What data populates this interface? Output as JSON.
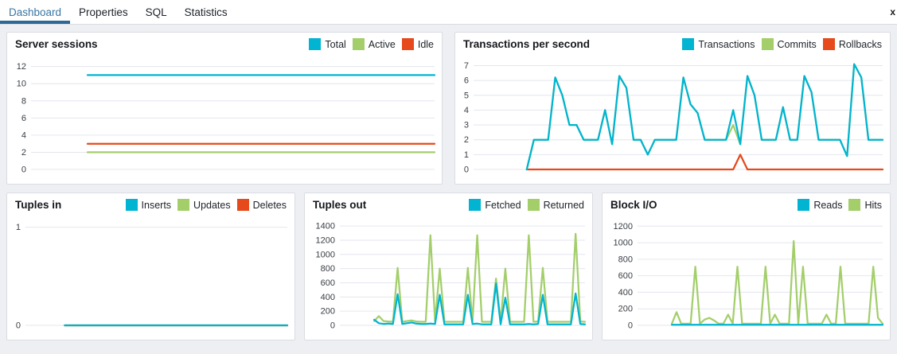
{
  "window": {
    "close_label": "x"
  },
  "tabs": {
    "active_color": "#2e6993",
    "items": [
      {
        "label": "Dashboard",
        "active": true
      },
      {
        "label": "Properties",
        "active": false
      },
      {
        "label": "SQL",
        "active": false
      },
      {
        "label": "Statistics",
        "active": false
      }
    ]
  },
  "colors": {
    "series_cyan": "#00b4d2",
    "series_green": "#a3ce6a",
    "series_orange": "#e5491c",
    "grid": "#e4e6ef",
    "panel_border": "#d9dce1",
    "page_background": "#edeff3"
  },
  "chart_data": [
    {
      "id": "server-sessions",
      "type": "line",
      "title": "Server sessions",
      "xlabel": "",
      "ylabel": "",
      "ylim": [
        0,
        12.8
      ],
      "yticks": [
        0,
        2,
        4,
        6,
        8,
        10,
        12
      ],
      "grid": true,
      "legend_position": "header-right",
      "start_frac": 0.14,
      "legend": [
        {
          "label": "Total",
          "color": "#00b4d2"
        },
        {
          "label": "Active",
          "color": "#a3ce6a"
        },
        {
          "label": "Idle",
          "color": "#e5491c"
        }
      ],
      "series": [
        {
          "name": "Total",
          "color": "#00b4d2",
          "values": [
            11,
            11
          ]
        },
        {
          "name": "Active",
          "color": "#a3ce6a",
          "values": [
            2,
            2
          ]
        },
        {
          "name": "Idle",
          "color": "#e5491c",
          "values": [
            3,
            3
          ]
        }
      ]
    },
    {
      "id": "transactions-per-second",
      "type": "line",
      "title": "Transactions per second",
      "xlabel": "",
      "ylabel": "",
      "ylim": [
        0,
        7.4
      ],
      "yticks": [
        0,
        1,
        2,
        3,
        4,
        5,
        6,
        7
      ],
      "grid": true,
      "legend_position": "header-right",
      "start_frac": 0.13,
      "legend": [
        {
          "label": "Transactions",
          "color": "#00b4d2"
        },
        {
          "label": "Commits",
          "color": "#a3ce6a"
        },
        {
          "label": "Rollbacks",
          "color": "#e5491c"
        }
      ],
      "series": [
        {
          "name": "Transactions",
          "color": "#00b4d2",
          "values": [
            0,
            2,
            2,
            2,
            6.2,
            5,
            3,
            3,
            2,
            2,
            2,
            4,
            1.7,
            6.3,
            5.5,
            2,
            2,
            1,
            2,
            2,
            2,
            2,
            6.2,
            4.4,
            3.8,
            2,
            2,
            2,
            2,
            4,
            1.7,
            6.3,
            5,
            2,
            2,
            2,
            4.2,
            2,
            2,
            6.3,
            5.2,
            2,
            2,
            2,
            2,
            0.9,
            7.1,
            6.2,
            2,
            2,
            2
          ]
        },
        {
          "name": "Commits",
          "color": "#a3ce6a",
          "values": [
            0,
            2,
            2,
            2,
            6.2,
            5,
            3,
            3,
            2,
            2,
            2,
            4,
            1.7,
            6.3,
            5.5,
            2,
            2,
            1,
            2,
            2,
            2,
            2,
            6.2,
            4.4,
            3.8,
            2,
            2,
            2,
            2,
            3,
            1.7,
            6.3,
            5,
            2,
            2,
            2,
            4.2,
            2,
            2,
            6.3,
            5.2,
            2,
            2,
            2,
            2,
            0.9,
            7.1,
            6.2,
            2,
            2,
            2
          ]
        },
        {
          "name": "Rollbacks",
          "color": "#e5491c",
          "values": [
            0,
            0,
            0,
            0,
            0,
            0,
            0,
            0,
            0,
            0,
            0,
            0,
            0,
            0,
            0,
            0,
            0,
            0,
            0,
            0,
            0,
            0,
            0,
            0,
            0,
            0,
            0,
            0,
            0,
            0,
            1,
            0,
            0,
            0,
            0,
            0,
            0,
            0,
            0,
            0,
            0,
            0,
            0,
            0,
            0,
            0,
            0,
            0,
            0,
            0,
            0
          ]
        }
      ]
    },
    {
      "id": "tuples-in",
      "type": "line",
      "title": "Tuples in",
      "xlabel": "",
      "ylabel": "",
      "ylim": [
        0,
        1.07
      ],
      "yticks": [
        0,
        1
      ],
      "grid": true,
      "legend_position": "header-right",
      "start_frac": 0.15,
      "legend": [
        {
          "label": "Inserts",
          "color": "#00b4d2"
        },
        {
          "label": "Updates",
          "color": "#a3ce6a"
        },
        {
          "label": "Deletes",
          "color": "#e5491c"
        }
      ],
      "series": [
        {
          "name": "Inserts",
          "color": "#00b4d2",
          "values": [
            0,
            0
          ]
        },
        {
          "name": "Updates",
          "color": "#a3ce6a",
          "values": [
            0,
            0
          ]
        },
        {
          "name": "Deletes",
          "color": "#e5491c",
          "values": [
            0,
            0
          ]
        }
      ]
    },
    {
      "id": "tuples-out",
      "type": "line",
      "title": "Tuples out",
      "xlabel": "",
      "ylabel": "",
      "ylim": [
        0,
        1480
      ],
      "yticks": [
        0,
        200,
        400,
        600,
        800,
        1000,
        1200,
        1400
      ],
      "grid": true,
      "legend_position": "header-right",
      "start_frac": 0.14,
      "legend": [
        {
          "label": "Fetched",
          "color": "#00b4d2"
        },
        {
          "label": "Returned",
          "color": "#a3ce6a"
        }
      ],
      "series": [
        {
          "name": "Fetched",
          "color": "#00b4d2",
          "values": [
            80,
            30,
            20,
            25,
            20,
            440,
            20,
            30,
            40,
            25,
            20,
            20,
            25,
            20,
            430,
            15,
            15,
            15,
            15,
            15,
            430,
            20,
            25,
            15,
            15,
            15,
            590,
            15,
            390,
            15,
            15,
            15,
            15,
            20,
            15,
            20,
            430,
            15,
            15,
            15,
            15,
            15,
            15,
            450,
            20,
            15
          ]
        },
        {
          "name": "Returned",
          "color": "#a3ce6a",
          "values": [
            60,
            130,
            60,
            55,
            50,
            810,
            50,
            60,
            70,
            55,
            50,
            50,
            1270,
            55,
            800,
            50,
            50,
            50,
            50,
            50,
            810,
            55,
            1270,
            50,
            50,
            50,
            660,
            50,
            800,
            50,
            50,
            50,
            50,
            1270,
            50,
            55,
            810,
            50,
            50,
            50,
            50,
            50,
            50,
            1290,
            55,
            50
          ]
        }
      ]
    },
    {
      "id": "block-io",
      "type": "line",
      "title": "Block I/O",
      "xlabel": "",
      "ylabel": "",
      "ylim": [
        0,
        1270
      ],
      "yticks": [
        0,
        200,
        400,
        600,
        800,
        1000,
        1200
      ],
      "grid": true,
      "legend_position": "header-right",
      "start_frac": 0.14,
      "legend": [
        {
          "label": "Reads",
          "color": "#00b4d2"
        },
        {
          "label": "Hits",
          "color": "#a3ce6a"
        }
      ],
      "series": [
        {
          "name": "Reads",
          "color": "#00b4d2",
          "values": [
            8,
            8,
            8,
            8,
            8,
            8,
            8,
            8,
            8,
            8,
            8,
            8,
            8,
            8,
            8,
            8,
            8,
            8,
            8,
            8,
            8,
            8,
            8,
            8,
            8,
            8,
            8,
            8,
            8,
            8,
            8,
            8,
            8,
            8,
            8,
            8,
            8,
            8,
            8,
            8,
            8,
            8,
            8,
            8,
            8,
            8
          ]
        },
        {
          "name": "Hits",
          "color": "#a3ce6a",
          "values": [
            20,
            160,
            20,
            20,
            20,
            710,
            20,
            70,
            90,
            60,
            20,
            20,
            130,
            20,
            710,
            20,
            20,
            20,
            20,
            20,
            710,
            20,
            130,
            20,
            20,
            20,
            1020,
            20,
            710,
            20,
            20,
            20,
            20,
            130,
            20,
            20,
            710,
            20,
            20,
            20,
            20,
            20,
            20,
            710,
            90,
            20
          ]
        }
      ]
    }
  ]
}
